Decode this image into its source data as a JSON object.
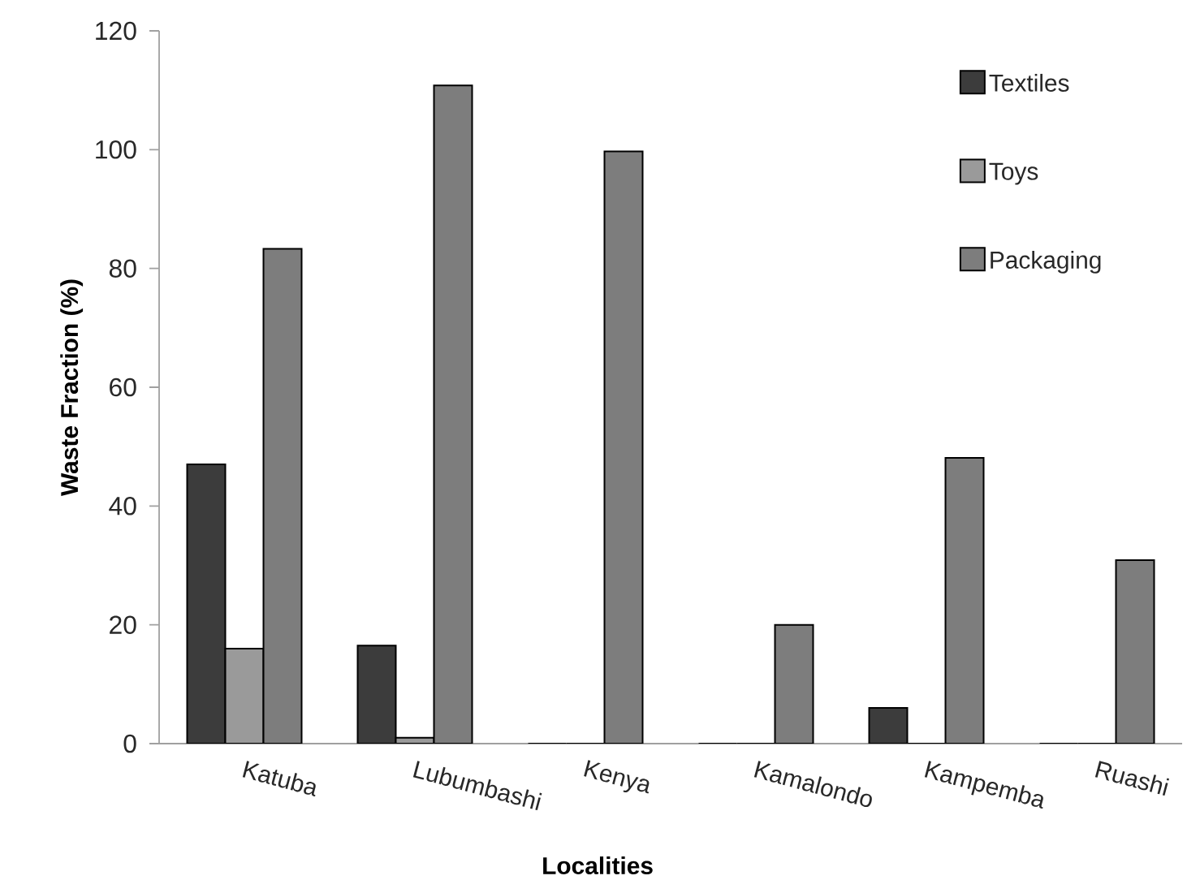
{
  "chart_data": {
    "type": "bar",
    "xlabel": "Localities",
    "ylabel": "Waste Fraction (%)",
    "categories": [
      "Katuba",
      "Lubumbashi",
      "Kenya",
      "Kamalondo",
      "Kampemba",
      "Ruashi"
    ],
    "series": [
      {
        "name": "Textiles",
        "color": "#3c3c3c",
        "values": [
          47,
          16.5,
          0,
          0,
          6,
          0
        ]
      },
      {
        "name": "Toys",
        "color": "#9a9a9a",
        "values": [
          16,
          1,
          0,
          0,
          0,
          0
        ]
      },
      {
        "name": "Packaging",
        "color": "#7d7d7d",
        "values": [
          83.3,
          110.8,
          99.7,
          20,
          48.1,
          30.9
        ]
      }
    ],
    "ylim": [
      0,
      120
    ],
    "yticks": [
      0,
      20,
      40,
      60,
      80,
      100,
      120
    ],
    "legend": "top right"
  }
}
